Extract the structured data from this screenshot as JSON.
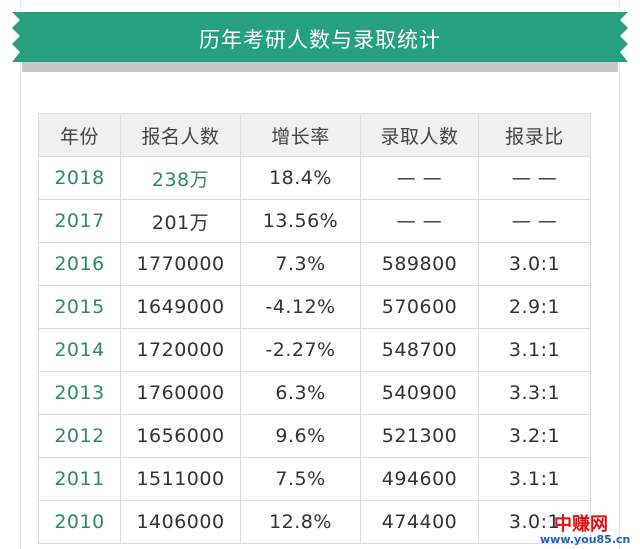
{
  "header": {
    "title": "历年考研人数与录取统计"
  },
  "table": {
    "columns": [
      "年份",
      "报名人数",
      "增长率",
      "录取人数",
      "报录比"
    ],
    "rows": [
      [
        "2018",
        "238万",
        "18.4%",
        "— —",
        "— —"
      ],
      [
        "2017",
        "201万",
        "13.56%",
        "— —",
        "— —"
      ],
      [
        "2016",
        "1770000",
        "7.3%",
        "589800",
        "3.0:1"
      ],
      [
        "2015",
        "1649000",
        "-4.12%",
        "570600",
        "2.9:1"
      ],
      [
        "2014",
        "1720000",
        "-2.27%",
        "548700",
        "3.1:1"
      ],
      [
        "2013",
        "1760000",
        "6.3%",
        "540900",
        "3.3:1"
      ],
      [
        "2012",
        "1656000",
        "9.6%",
        "521300",
        "3.2:1"
      ],
      [
        "2011",
        "1511000",
        "7.5%",
        "494600",
        "3.1:1"
      ],
      [
        "2010",
        "1406000",
        "12.8%",
        "474400",
        "3.0:1"
      ]
    ]
  },
  "watermark": {
    "name": "中赚网",
    "url": "www.you85.cn"
  }
}
